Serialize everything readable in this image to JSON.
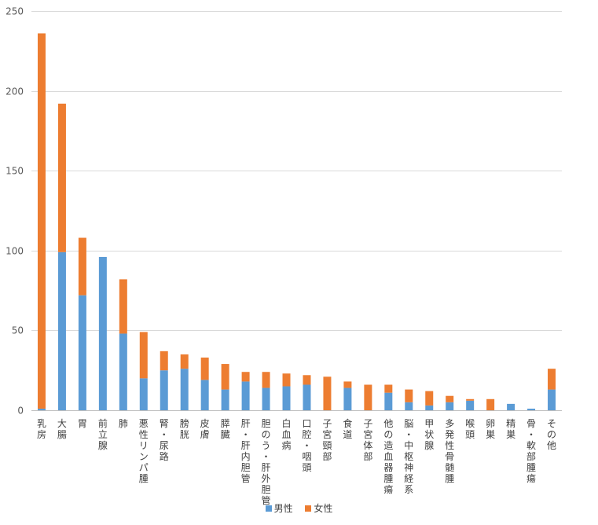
{
  "chart_data": {
    "type": "bar",
    "stacked": true,
    "categories": [
      "乳房",
      "大腸",
      "胃",
      "前立腺",
      "肺",
      "悪性リンパ腫",
      "腎・尿路",
      "膀胱",
      "皮膚",
      "膵臓",
      "肝・肝内胆管",
      "胆のう・肝外胆管",
      "白血病",
      "口腔・咽頭",
      "子宮頸部",
      "食道",
      "子宮体部",
      "他の造血器腫瘍",
      "脳・中枢神経系",
      "甲状腺",
      "多発性骨髄腫",
      "喉頭",
      "卵巣",
      "精巣",
      "骨・軟部腫瘍",
      "その他"
    ],
    "series": [
      {
        "name": "男性",
        "color": "#5b9bd5",
        "values": [
          1,
          99,
          72,
          96,
          48,
          20,
          25,
          26,
          19,
          13,
          18,
          14,
          15,
          16,
          0,
          14,
          0,
          11,
          5,
          3,
          5,
          6,
          0,
          4,
          1,
          13
        ]
      },
      {
        "name": "女性",
        "color": "#ed7d31",
        "values": [
          235,
          93,
          36,
          0,
          34,
          29,
          12,
          9,
          14,
          16,
          6,
          10,
          8,
          6,
          21,
          4,
          16,
          5,
          8,
          9,
          4,
          1,
          7,
          0,
          0,
          13
        ]
      }
    ],
    "ylim": [
      0,
      250
    ],
    "yticks": [
      0,
      50,
      100,
      150,
      200,
      250
    ],
    "grid": true,
    "legend_position": "bottom"
  }
}
